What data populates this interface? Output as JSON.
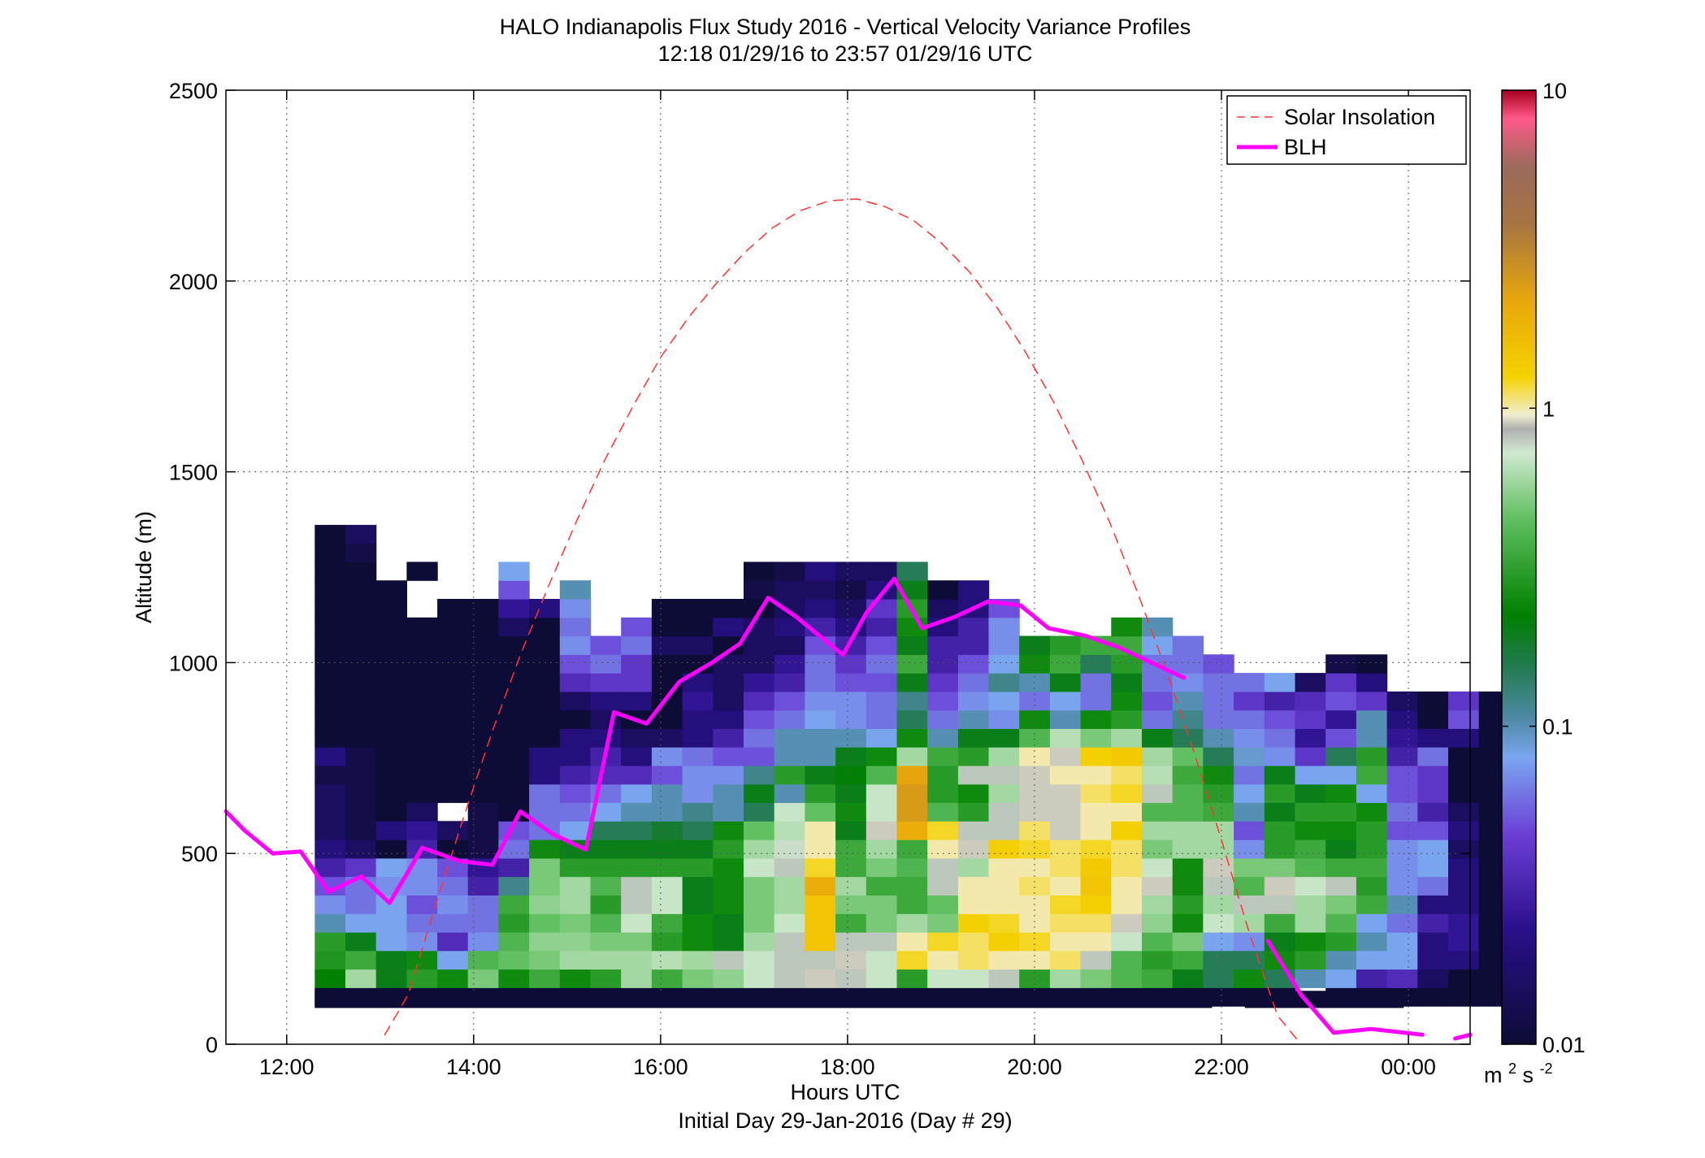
{
  "chart_data": {
    "type": "heatmap",
    "title": "HALO Indianapolis Flux Study 2016 - Vertical Velocity Variance Profiles",
    "subtitle": "12:18 01/29/16 to 23:57 01/29/16  UTC",
    "xlabel": "Hours UTC",
    "xlabel2": "Initial Day 29-Jan-2016 (Day # 29)",
    "ylabel": "Altitude (m)",
    "xlim": [
      11.35,
      24.66
    ],
    "ylim": [
      0,
      2500
    ],
    "x_ticks": [
      12,
      14,
      16,
      18,
      20,
      22,
      24
    ],
    "x_tick_labels": [
      "12:00",
      "14:00",
      "16:00",
      "18:00",
      "20:00",
      "22:00",
      "00:00"
    ],
    "y_ticks": [
      0,
      500,
      1000,
      1500,
      2000,
      2500
    ],
    "y_tick_labels": [
      "0",
      "500",
      "1000",
      "1500",
      "2000",
      "2500"
    ],
    "grid": true,
    "legend_position": "top-right",
    "colorbar": {
      "scale": "log",
      "range": [
        0.01,
        10
      ],
      "ticks": [
        0.01,
        0.1,
        1,
        10
      ],
      "tick_labels": [
        "0.01",
        "0.1",
        "1",
        "10"
      ],
      "unit_base": "m",
      "unit_exp1": "2",
      "unit_mid": "s",
      "unit_exp2": "-2"
    },
    "heatmap": {
      "x_start": 12.3,
      "x_step": 0.3277,
      "y_start": 100,
      "y_step": 48.5,
      "note_columns": "each column is one profile; values listed from lowest altitude bin upward; null = no data",
      "columns": [
        [
          0.01,
          0.22,
          0.28,
          0.3,
          0.1,
          0.07,
          0.05,
          0.03,
          0.02,
          0.015,
          0.015,
          0.015,
          0.012,
          0.02,
          0.01,
          0.01,
          0.01,
          0.01,
          0.01,
          0.01,
          0.01,
          0.01,
          0.01,
          0.01,
          0.01,
          0.01
        ],
        [
          0.01,
          0.6,
          0.35,
          0.2,
          0.08,
          0.06,
          0.06,
          0.04,
          0.015,
          0.012,
          0.012,
          0.012,
          0.012,
          0.012,
          0.01,
          0.01,
          0.01,
          0.01,
          0.01,
          0.01,
          0.01,
          0.01,
          0.01,
          0.01,
          0.012,
          0.015
        ],
        [
          0.01,
          0.2,
          0.2,
          0.08,
          0.08,
          0.08,
          0.07,
          0.08,
          0.01,
          0.02,
          0.01,
          0.01,
          0.01,
          0.01,
          0.01,
          0.01,
          0.01,
          0.01,
          0.01,
          0.01,
          0.01,
          0.01,
          0.01
        ],
        [
          0.01,
          0.3,
          0.25,
          0.07,
          0.06,
          0.05,
          0.07,
          0.07,
          0.03,
          0.025,
          0.015,
          0.01,
          0.01,
          0.01,
          0.01,
          0.01,
          0.01,
          0.01,
          0.01,
          0.01,
          0.01,
          null,
          null,
          0.01
        ],
        [
          0.01,
          0.25,
          0.08,
          0.035,
          0.06,
          0.07,
          0.06,
          0.05,
          0.01,
          0.015,
          null,
          0.01,
          0.01,
          0.01,
          0.01,
          0.01,
          0.01,
          0.01,
          0.01,
          0.01,
          0.01,
          0.01
        ],
        [
          0.01,
          0.5,
          0.4,
          0.07,
          0.06,
          0.06,
          0.03,
          0.025,
          0.012,
          0.012,
          0.012,
          0.01,
          0.01,
          0.01,
          0.01,
          0.01,
          0.01,
          0.01,
          0.01,
          0.01,
          0.01,
          0.01
        ],
        [
          0.01,
          0.25,
          0.45,
          0.4,
          0.3,
          0.35,
          0.12,
          0.03,
          0.06,
          0.05,
          0.01,
          0.01,
          0.01,
          0.01,
          0.01,
          0.01,
          0.01,
          0.01,
          0.01,
          0.01,
          0.015,
          0.025,
          0.05,
          0.08
        ],
        [
          0.01,
          0.35,
          0.5,
          0.55,
          0.45,
          0.55,
          0.5,
          0.5,
          0.25,
          0.06,
          0.06,
          0.06,
          0.02,
          0.02,
          0.01,
          0.01,
          0.01,
          0.01,
          0.01,
          0.01,
          0.01,
          0.02
        ],
        [
          0.01,
          0.25,
          0.6,
          0.55,
          0.5,
          0.6,
          0.6,
          0.3,
          0.2,
          0.08,
          0.06,
          0.05,
          0.03,
          0.02,
          0.02,
          0.01,
          0.015,
          0.035,
          0.05,
          0.07,
          0.06,
          0.07,
          0.1
        ],
        [
          0.01,
          0.3,
          0.6,
          0.5,
          0.4,
          0.3,
          0.4,
          0.3,
          0.2,
          0.15,
          0.08,
          0.06,
          0.035,
          0.03,
          0.02,
          0.015,
          0.02,
          0.04,
          0.06,
          0.05
        ],
        [
          0.01,
          0.6,
          0.6,
          0.5,
          0.7,
          0.8,
          0.8,
          0.3,
          0.2,
          0.15,
          0.1,
          0.08,
          0.035,
          0.02,
          0.015,
          0.01,
          0.02,
          0.04,
          0.04,
          0.06,
          0.05
        ],
        [
          0.01,
          0.35,
          0.65,
          0.3,
          0.35,
          0.7,
          0.7,
          0.3,
          0.2,
          0.18,
          0.1,
          0.1,
          0.05,
          0.07,
          0.015,
          0.01,
          0.01,
          0.01,
          0.01,
          0.015,
          0.01,
          0.01
        ],
        [
          0.01,
          0.5,
          0.6,
          0.25,
          0.25,
          0.2,
          0.2,
          0.3,
          0.2,
          0.15,
          0.12,
          0.07,
          0.07,
          0.06,
          0.02,
          0.02,
          0.025,
          0.02,
          0.01,
          0.015,
          0.01,
          0.01
        ],
        [
          0.01,
          0.55,
          0.8,
          0.2,
          0.2,
          0.25,
          0.25,
          0.25,
          0.3,
          0.25,
          0.1,
          0.1,
          0.07,
          0.05,
          0.03,
          0.02,
          0.015,
          0.015,
          0.015,
          0.01,
          0.02,
          0.01
        ],
        [
          0.01,
          0.7,
          0.7,
          0.6,
          0.5,
          0.5,
          0.5,
          0.7,
          0.6,
          0.45,
          0.15,
          0.2,
          0.12,
          0.05,
          0.06,
          0.05,
          0.035,
          0.025,
          0.015,
          0.015,
          0.015,
          0.01,
          0.012,
          0.01
        ],
        [
          0.01,
          0.8,
          0.8,
          0.8,
          0.7,
          0.6,
          0.6,
          0.8,
          0.75,
          0.65,
          0.7,
          0.1,
          0.3,
          0.1,
          0.1,
          0.06,
          0.05,
          0.03,
          0.025,
          0.015,
          0.02,
          0.015,
          0.015,
          0.012
        ],
        [
          0.01,
          0.9,
          0.8,
          1.5,
          1.5,
          1.5,
          2.0,
          1.2,
          1.0,
          1.0,
          0.45,
          0.3,
          0.2,
          0.1,
          0.1,
          0.08,
          0.07,
          0.06,
          0.06,
          0.05,
          0.03,
          0.02,
          0.015,
          0.02
        ],
        [
          0.01,
          0.8,
          0.9,
          0.8,
          0.35,
          0.5,
          0.6,
          0.35,
          0.35,
          0.2,
          0.25,
          0.2,
          0.22,
          0.2,
          0.1,
          0.07,
          0.07,
          0.05,
          0.04,
          0.03,
          0.02,
          0.015,
          0.012,
          0.015
        ],
        [
          0.01,
          0.7,
          0.7,
          0.8,
          0.5,
          0.5,
          0.35,
          0.5,
          0.6,
          0.9,
          0.7,
          0.7,
          0.4,
          0.25,
          0.08,
          0.06,
          0.06,
          0.05,
          0.06,
          0.05,
          0.03,
          0.04,
          0.02,
          0.015
        ],
        [
          0.01,
          0.3,
          1.2,
          1.0,
          0.6,
          0.35,
          0.35,
          0.4,
          0.35,
          2.0,
          2.5,
          2.5,
          2.2,
          0.6,
          0.25,
          0.15,
          0.12,
          0.2,
          0.35,
          0.2,
          0.25,
          0.3,
          0.2,
          0.15
        ],
        [
          0.01,
          0.7,
          1.0,
          1.2,
          0.5,
          0.45,
          0.8,
          0.8,
          1.0,
          1.2,
          0.4,
          0.3,
          0.3,
          0.35,
          0.1,
          0.06,
          0.05,
          0.04,
          0.03,
          0.03,
          0.02,
          0.015,
          0.01
        ],
        [
          0.01,
          0.7,
          1.1,
          1.1,
          1.3,
          1.0,
          1.0,
          0.6,
          0.9,
          0.8,
          0.3,
          0.25,
          0.8,
          0.3,
          0.2,
          0.1,
          0.07,
          0.06,
          0.05,
          0.03,
          0.03,
          0.02,
          0.02
        ],
        [
          0.01,
          0.8,
          1.0,
          1.3,
          1.2,
          1.0,
          1.0,
          1.0,
          1.3,
          0.8,
          0.8,
          0.6,
          0.8,
          0.6,
          0.2,
          0.07,
          0.08,
          0.12,
          0.08,
          0.07,
          0.07,
          0.05
        ],
        [
          0.01,
          0.3,
          1.0,
          1.2,
          1.0,
          1.0,
          1.1,
          1.0,
          1.2,
          1.1,
          0.9,
          0.9,
          0.9,
          1.0,
          0.4,
          0.25,
          0.06,
          0.1,
          0.25,
          0.2
        ],
        [
          0.01,
          0.6,
          1.1,
          1.0,
          1.1,
          1.2,
          1.0,
          1.1,
          1.1,
          0.9,
          0.9,
          0.9,
          1.0,
          0.9,
          0.65,
          0.1,
          0.08,
          0.2,
          0.35,
          0.3
        ],
        [
          0.01,
          0.5,
          0.8,
          1.0,
          1.1,
          1.3,
          1.5,
          1.4,
          1.2,
          1.0,
          1.0,
          1.1,
          1.0,
          1.3,
          0.5,
          0.25,
          0.06,
          0.06,
          0.15,
          0.35
        ],
        [
          0.01,
          0.4,
          0.4,
          0.7,
          0.9,
          1.0,
          1.0,
          1.1,
          1.1,
          1.3,
          1.0,
          1.2,
          1.1,
          1.4,
          0.6,
          0.3,
          0.25,
          0.2,
          0.3,
          0.35,
          0.25
        ],
        [
          0.01,
          0.35,
          0.3,
          0.4,
          0.55,
          0.6,
          0.9,
          0.7,
          0.5,
          0.6,
          0.4,
          0.8,
          0.65,
          0.6,
          0.2,
          0.06,
          0.05,
          0.06,
          0.06,
          0.08,
          0.1
        ],
        [
          0.01,
          0.2,
          0.35,
          0.5,
          0.25,
          0.3,
          0.25,
          0.25,
          0.6,
          0.6,
          0.4,
          0.4,
          0.35,
          0.45,
          0.15,
          0.12,
          0.1,
          0.07,
          0.06,
          0.06
        ],
        [
          0.01,
          0.15,
          0.15,
          0.08,
          0.7,
          0.6,
          0.8,
          0.9,
          0.6,
          0.6,
          0.35,
          0.3,
          0.25,
          0.15,
          0.1,
          0.06,
          0.06,
          0.06,
          0.05
        ],
        [
          0.01,
          0.25,
          0.15,
          0.07,
          0.6,
          0.8,
          0.4,
          0.5,
          0.07,
          0.05,
          0.1,
          0.08,
          0.06,
          0.09,
          0.07,
          0.06,
          0.04,
          0.06
        ],
        [
          0.01,
          0.15,
          0.25,
          0.2,
          0.35,
          0.8,
          0.9,
          0.5,
          0.3,
          0.3,
          0.2,
          0.3,
          0.2,
          0.07,
          0.06,
          0.05,
          0.03,
          0.08
        ],
        [
          null,
          0.1,
          0.3,
          0.25,
          0.6,
          0.6,
          0.7,
          0.4,
          0.35,
          0.25,
          0.3,
          0.2,
          0.08,
          0.04,
          0.025,
          0.04,
          0.035,
          0.015
        ],
        [
          0.01,
          0.08,
          0.1,
          0.3,
          0.4,
          0.5,
          0.8,
          0.35,
          0.2,
          0.25,
          0.3,
          0.25,
          0.08,
          0.15,
          0.05,
          0.025,
          0.05,
          0.04,
          0.012
        ],
        [
          0.01,
          0.03,
          0.08,
          0.1,
          0.08,
          0.35,
          0.3,
          0.35,
          0.3,
          0.3,
          0.25,
          0.08,
          0.35,
          0.3,
          0.1,
          0.1,
          0.04,
          0.02,
          0.01
        ],
        [
          0.01,
          0.035,
          0.08,
          0.08,
          0.06,
          0.1,
          0.07,
          0.07,
          0.07,
          0.05,
          0.06,
          0.05,
          0.05,
          0.03,
          0.025,
          0.02,
          0.015
        ],
        [
          0.01,
          0.015,
          0.02,
          0.02,
          0.03,
          0.02,
          0.06,
          0.08,
          0.08,
          0.05,
          0.03,
          0.04,
          0.04,
          0.06,
          0.02,
          0.01,
          0.01
        ],
        [
          0.01,
          0.01,
          0.02,
          0.025,
          0.025,
          0.02,
          0.02,
          0.02,
          0.015,
          0.02,
          0.015,
          0.01,
          0.01,
          0.01,
          0.02,
          0.05,
          0.04
        ],
        [
          0.01,
          0.01,
          0.01,
          0.01,
          0.01,
          0.01,
          0.01,
          0.01,
          0.01,
          0.01,
          0.01,
          0.01,
          0.01,
          0.01,
          0.01,
          0.01,
          0.01
        ]
      ]
    },
    "series": [
      {
        "name": "Solar Insolation",
        "style": "dashed",
        "color": "#ff3333",
        "x": [
          13.05,
          13.3,
          13.6,
          13.9,
          14.2,
          14.5,
          14.8,
          15.1,
          15.4,
          15.7,
          16.0,
          16.3,
          16.6,
          16.9,
          17.2,
          17.5,
          17.8,
          18.1,
          18.4,
          18.7,
          19.0,
          19.3,
          19.6,
          19.9,
          20.2,
          20.5,
          20.8,
          21.1,
          21.4,
          21.7,
          22.0,
          22.3,
          22.6,
          22.85
        ],
        "y": [
          25,
          130,
          370,
          600,
          820,
          1020,
          1200,
          1370,
          1530,
          1670,
          1800,
          1905,
          1995,
          2075,
          2140,
          2185,
          2210,
          2215,
          2195,
          2160,
          2100,
          2025,
          1930,
          1815,
          1685,
          1535,
          1370,
          1185,
          985,
          770,
          535,
          290,
          75,
          0
        ]
      },
      {
        "name": "BLH",
        "style": "solid",
        "color": "#ff00ff",
        "x": [
          11.35,
          11.55,
          11.85,
          12.15,
          12.45,
          12.8,
          13.1,
          13.45,
          13.85,
          14.2,
          14.5,
          14.85,
          15.2,
          15.5,
          15.85,
          16.2,
          16.55,
          16.85,
          17.15,
          17.45,
          17.75,
          17.95,
          18.2,
          18.5,
          18.8,
          19.15,
          19.5,
          19.85,
          20.15,
          20.55,
          20.9,
          21.25,
          21.6,
          21.85
        ],
        "y": [
          610,
          560,
          500,
          505,
          400,
          440,
          370,
          515,
          480,
          470,
          610,
          550,
          510,
          870,
          840,
          950,
          1000,
          1050,
          1170,
          1120,
          1060,
          1020,
          1130,
          1220,
          1090,
          1120,
          1160,
          1150,
          1090,
          1070,
          1040,
          1000,
          960,
          null
        ]
      },
      {
        "name": "BLH_segment2",
        "style": "solid",
        "color": "#ff00ff",
        "x": [
          22.5,
          22.85,
          23.2,
          23.6,
          24.15
        ],
        "y": [
          270,
          130,
          30,
          40,
          25
        ]
      },
      {
        "name": "BLH_segment3",
        "style": "solid",
        "color": "#ff00ff",
        "x": [
          24.5,
          24.66
        ],
        "y": [
          15,
          25
        ]
      }
    ],
    "no_data_band": [
      {
        "x0": 12.3,
        "x1": 21.9,
        "y0": 95,
        "y1": 140
      },
      {
        "x0": 22.25,
        "x1": 23.95,
        "y0": 95,
        "y1": 140
      }
    ],
    "legend": [
      {
        "label": "Solar Insolation",
        "style": "dashed",
        "color": "#ff3333"
      },
      {
        "label": "BLH",
        "style": "solid",
        "color": "#ff00ff"
      }
    ],
    "colormap_stops": [
      [
        0.0,
        "#0c0c36"
      ],
      [
        0.12,
        "#2a0f8a"
      ],
      [
        0.22,
        "#6b3fd6"
      ],
      [
        0.3,
        "#7aa6f0"
      ],
      [
        0.34,
        "#4f8aa8"
      ],
      [
        0.4,
        "#1f7a4a"
      ],
      [
        0.45,
        "#008000"
      ],
      [
        0.55,
        "#5fbf5f"
      ],
      [
        0.62,
        "#cfe8cf"
      ],
      [
        0.645,
        "#b0b0b0"
      ],
      [
        0.66,
        "#f2eecf"
      ],
      [
        0.7,
        "#f5d200"
      ],
      [
        0.78,
        "#e8a60c"
      ],
      [
        0.86,
        "#a67442"
      ],
      [
        0.92,
        "#9b6a5a"
      ],
      [
        0.97,
        "#ff5a8a"
      ],
      [
        1.0,
        "#a8001e"
      ]
    ]
  }
}
